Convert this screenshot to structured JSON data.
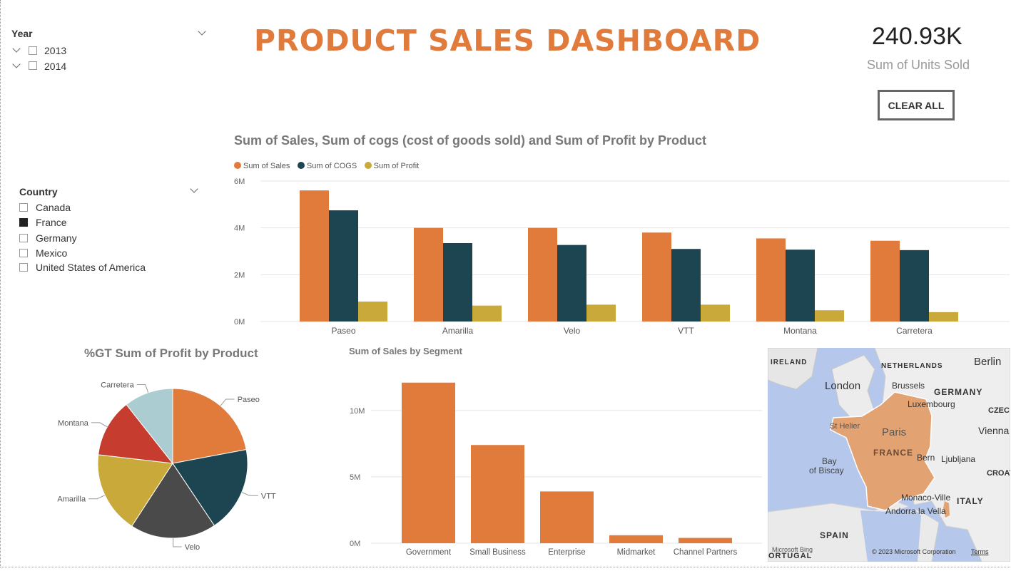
{
  "year_slicer": {
    "title": "Year",
    "options": [
      {
        "label": "2013",
        "checked": false
      },
      {
        "label": "2014",
        "checked": false
      }
    ]
  },
  "country_slicer": {
    "title": "Country",
    "options": [
      {
        "label": "Canada",
        "checked": false
      },
      {
        "label": "France",
        "checked": true
      },
      {
        "label": "Germany",
        "checked": false
      },
      {
        "label": "Mexico",
        "checked": false
      },
      {
        "label": "United States of America",
        "checked": false
      }
    ]
  },
  "header": {
    "title": "PRODUCT SALES DASHBOARD"
  },
  "kpi": {
    "value": "240.93K",
    "label": "Sum of Units Sold"
  },
  "clear_button": "CLEAR ALL",
  "colors": {
    "sales": "#e07b3c",
    "cogs": "#1c4451",
    "profit": "#c9a93a",
    "accent": "#e07b3c"
  },
  "chart_data": [
    {
      "type": "bar",
      "title": "Sum of  Sales, Sum of cogs (cost of goods sold) and Sum of Profit by Product",
      "categories": [
        "Paseo",
        "Amarilla",
        "Velo",
        "VTT",
        "Montana",
        "Carretera"
      ],
      "series": [
        {
          "name": "Sum of  Sales",
          "values": [
            5.6,
            4.0,
            4.0,
            3.8,
            3.55,
            3.45
          ]
        },
        {
          "name": "Sum of COGS",
          "values": [
            4.75,
            3.35,
            3.27,
            3.1,
            3.07,
            3.05
          ]
        },
        {
          "name": "Sum of Profit",
          "values": [
            0.85,
            0.68,
            0.72,
            0.72,
            0.48,
            0.4
          ]
        }
      ],
      "yticks": [
        "0M",
        "2M",
        "4M",
        "6M"
      ],
      "ylim": [
        0,
        6
      ],
      "grid": true,
      "legend": "top-left"
    },
    {
      "type": "pie",
      "title": "%GT Sum of Profit by Product",
      "labels": [
        "Paseo",
        "VTT",
        "Velo",
        "Amarilla",
        "Montana",
        "Carretera"
      ],
      "values": [
        21.6,
        18.2,
        18.2,
        17.3,
        12.3,
        10.4
      ],
      "colors": [
        "#e07b3c",
        "#1c4451",
        "#4a4a4a",
        "#c9a93a",
        "#c63d2f",
        "#abcdd2"
      ]
    },
    {
      "type": "bar",
      "title": "Sum of  Sales by Segment",
      "categories": [
        "Government",
        "Small Business",
        "Enterprise",
        "Midmarket",
        "Channel Partners"
      ],
      "values": [
        12.1,
        7.4,
        3.9,
        0.6,
        0.4
      ],
      "yticks": [
        "0M",
        "5M",
        "10M"
      ],
      "ylim": [
        0,
        13
      ],
      "grid": true
    }
  ],
  "map": {
    "labels": {
      "ireland": "IRELAND",
      "netherlands": "NETHERLANDS",
      "berlin": "Berlin",
      "london": "London",
      "brussels": "Brussels",
      "germany": "GERMANY",
      "luxembourg": "Luxembourg",
      "czech": "CZEC",
      "sthelier": "St Helier",
      "paris": "Paris",
      "vienna": "Vienna",
      "france": "FRANCE",
      "bern": "Bern",
      "ljubljana": "Ljubljana",
      "bay": "Bay",
      "biscay": "of Biscay",
      "croat": "CROAT",
      "monaco": "Monaco-Ville",
      "italy": "ITALY",
      "andorra": "Andorra la Vella",
      "spain": "SPAIN",
      "portugal": "ORTUGAL"
    },
    "attribution": "© 2023 Microsoft Corporation",
    "terms": "Terms",
    "bing": "Microsoft Bing"
  }
}
